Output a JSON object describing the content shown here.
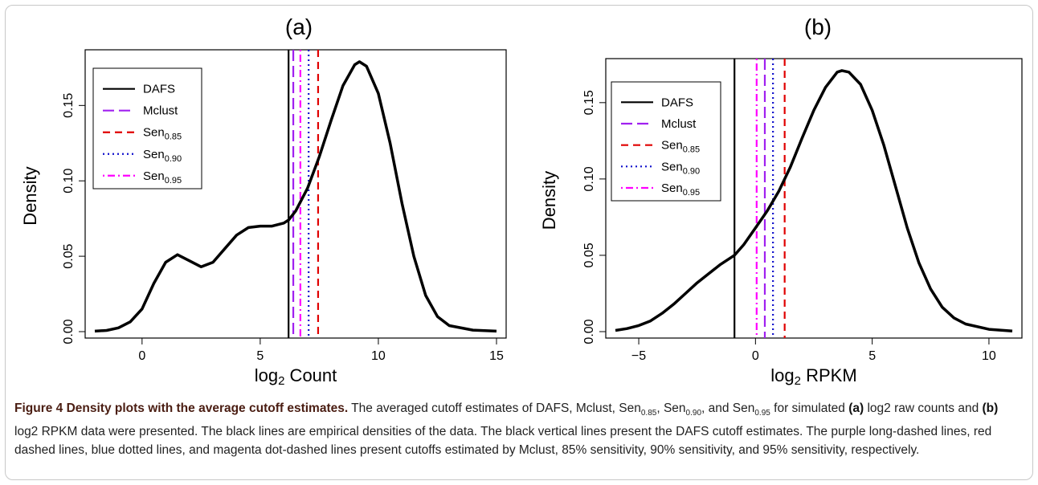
{
  "chart_data": [
    {
      "type": "line",
      "panel_title": "(a)",
      "xlabel": "log2 Count",
      "ylabel": "Density",
      "xlim": [
        -2,
        15
      ],
      "ylim": [
        0,
        0.18
      ],
      "xticks": [
        0,
        5,
        10,
        15
      ],
      "yticks": [
        0.0,
        0.05,
        0.1,
        0.15
      ],
      "ytick_labels": [
        "0.00",
        "0.05",
        "0.10",
        "0.15"
      ],
      "legend_position": "top-left",
      "series": [
        {
          "name": "density",
          "color": "#000000",
          "x": [
            -2,
            -1.5,
            -1,
            -0.5,
            0,
            0.5,
            1,
            1.5,
            2,
            2.5,
            3,
            3.5,
            4,
            4.5,
            5,
            5.5,
            6,
            6.2,
            6.5,
            7,
            7.5,
            8,
            8.5,
            9,
            9.2,
            9.5,
            10,
            10.5,
            11,
            11.5,
            12,
            12.5,
            13,
            14,
            15
          ],
          "y": [
            0.0003,
            0.0008,
            0.0025,
            0.0065,
            0.015,
            0.032,
            0.046,
            0.051,
            0.047,
            0.043,
            0.046,
            0.055,
            0.064,
            0.069,
            0.07,
            0.07,
            0.072,
            0.074,
            0.08,
            0.095,
            0.116,
            0.14,
            0.163,
            0.177,
            0.179,
            0.176,
            0.158,
            0.125,
            0.085,
            0.05,
            0.024,
            0.01,
            0.004,
            0.001,
            0.0003
          ]
        }
      ],
      "cutoffs": [
        {
          "name": "DAFS",
          "x": 6.2,
          "color": "#000000",
          "dash": "solid"
        },
        {
          "name": "Mclust",
          "x": 6.4,
          "color": "#a020f0",
          "dash": "longdash"
        },
        {
          "name": "Sen0.85",
          "x": 7.45,
          "color": "#e00000",
          "dash": "dashed"
        },
        {
          "name": "Sen0.90",
          "x": 7.05,
          "color": "#1010cc",
          "dash": "dotted"
        },
        {
          "name": "Sen0.95",
          "x": 6.7,
          "color": "#ff00ff",
          "dash": "dotdash"
        }
      ]
    },
    {
      "type": "line",
      "panel_title": "(b)",
      "xlabel": "log2 RPKM",
      "ylabel": "Density",
      "xlim": [
        -6,
        11
      ],
      "ylim": [
        0,
        0.172
      ],
      "xticks": [
        -5,
        0,
        5,
        10
      ],
      "xtick_labels": [
        "−5",
        "0",
        "5",
        "10"
      ],
      "yticks": [
        0.0,
        0.05,
        0.1,
        0.15
      ],
      "ytick_labels": [
        "0.00",
        "0.05",
        "0.10",
        "0.15"
      ],
      "legend_position": "top-left",
      "series": [
        {
          "name": "density",
          "color": "#000000",
          "x": [
            -6,
            -5.5,
            -5,
            -4.5,
            -4,
            -3.5,
            -3,
            -2.5,
            -2,
            -1.5,
            -1,
            -0.9,
            -0.5,
            0,
            0.5,
            1,
            1.5,
            2,
            2.5,
            3,
            3.5,
            3.7,
            4,
            4.5,
            5,
            5.5,
            6,
            6.5,
            7,
            7.5,
            8,
            8.5,
            9,
            10,
            11
          ],
          "y": [
            0.0008,
            0.002,
            0.004,
            0.007,
            0.012,
            0.018,
            0.025,
            0.032,
            0.038,
            0.044,
            0.049,
            0.05,
            0.057,
            0.068,
            0.079,
            0.092,
            0.108,
            0.127,
            0.145,
            0.16,
            0.17,
            0.171,
            0.17,
            0.162,
            0.145,
            0.122,
            0.095,
            0.068,
            0.045,
            0.028,
            0.016,
            0.009,
            0.005,
            0.0015,
            0.0004
          ]
        }
      ],
      "cutoffs": [
        {
          "name": "DAFS",
          "x": -0.9,
          "color": "#000000",
          "dash": "solid"
        },
        {
          "name": "Mclust",
          "x": 0.4,
          "color": "#a020f0",
          "dash": "longdash"
        },
        {
          "name": "Sen0.85",
          "x": 1.25,
          "color": "#e00000",
          "dash": "dashed"
        },
        {
          "name": "Sen0.90",
          "x": 0.75,
          "color": "#1010cc",
          "dash": "dotted"
        },
        {
          "name": "Sen0.95",
          "x": 0.05,
          "color": "#ff00ff",
          "dash": "dotdash"
        }
      ]
    }
  ],
  "legend_items": [
    {
      "base": "DAFS",
      "sub": ""
    },
    {
      "base": "Mclust",
      "sub": ""
    },
    {
      "base": "Sen",
      "sub": "0.85"
    },
    {
      "base": "Sen",
      "sub": "0.90"
    },
    {
      "base": "Sen",
      "sub": "0.95"
    }
  ],
  "caption": {
    "title": "Figure 4 Density plots with the average cutoff estimates.",
    "p1": " The averaged cutoff estimates of DAFS, Mclust, Sen",
    "sub1": "0.85",
    "p2": ", Sen",
    "sub2": "0.90",
    "p3": ", and Sen",
    "sub3": "0.95",
    "p4": " for simulated ",
    "ref_a": "(a)",
    "p5": " log2 raw counts and ",
    "ref_b": "(b)",
    "p6": " log2 RPKM data were presented. The black lines are empirical densities of the data. The black vertical lines present the DAFS cutoff estimates. The purple long-dashed lines, red dashed lines, blue dotted lines, and magenta dot-dashed lines present cutoffs estimated by Mclust, 85% sensitivity, 90% sensitivity, and 95% sensitivity, respectively."
  }
}
